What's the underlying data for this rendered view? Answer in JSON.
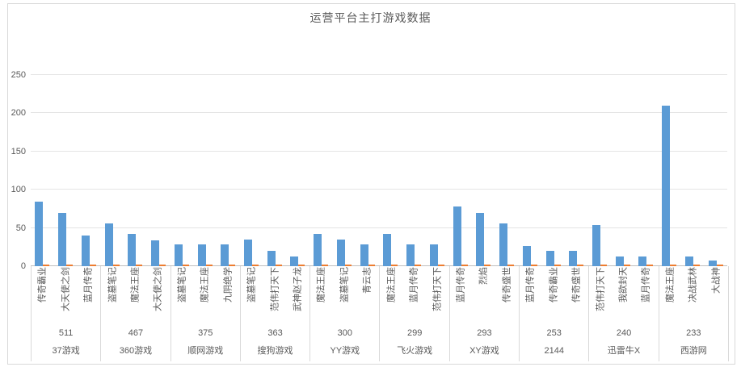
{
  "title": "运营平台主打游戏数据",
  "colors": {
    "primary_series": "#5B9BD5",
    "secondary_series": "#ED7D31",
    "gridline": "#E4E4E4",
    "axis_line": "#BFBFBF",
    "text": "#595959",
    "border": "#D9D9D9"
  },
  "chart_data": {
    "type": "bar",
    "title": "运营平台主打游戏数据",
    "xlabel": "",
    "ylabel": "",
    "ylim": [
      0,
      250
    ],
    "y_ticks": [
      0,
      50,
      100,
      150,
      200,
      250
    ],
    "y_tick_labels": [
      "0",
      "50",
      "100",
      "150",
      "200",
      "250"
    ],
    "grid": true,
    "legend": "none",
    "series_count": 2,
    "groups": [
      {
        "platform": "37游戏",
        "total": "511",
        "games": [
          "传奇霸业",
          "大天使之剑",
          "蓝月传奇"
        ],
        "primary_values": [
          84,
          70,
          40
        ],
        "secondary_values": [
          1,
          1,
          1
        ]
      },
      {
        "platform": "360游戏",
        "total": "467",
        "games": [
          "盗墓笔记",
          "魔法王座",
          "大天使之剑"
        ],
        "primary_values": [
          56,
          42,
          34
        ],
        "secondary_values": [
          1,
          1,
          1
        ]
      },
      {
        "platform": "顺网游戏",
        "total": "375",
        "games": [
          "盗墓笔记",
          "魔法王座",
          "九阴绝学"
        ],
        "primary_values": [
          28,
          28,
          28
        ],
        "secondary_values": [
          1,
          1,
          1
        ]
      },
      {
        "platform": "搜狗游戏",
        "total": "363",
        "games": [
          "盗墓笔记",
          "范伟打天下",
          "武神赵子龙"
        ],
        "primary_values": [
          35,
          20,
          13
        ],
        "secondary_values": [
          1,
          1,
          1
        ]
      },
      {
        "platform": "YY游戏",
        "total": "300",
        "games": [
          "魔法王座",
          "盗墓笔记",
          "青云志"
        ],
        "primary_values": [
          42,
          35,
          28
        ],
        "secondary_values": [
          1,
          1,
          1
        ]
      },
      {
        "platform": "飞火游戏",
        "total": "299",
        "games": [
          "魔法王座",
          "蓝月传奇",
          "范伟打天下"
        ],
        "primary_values": [
          42,
          28,
          28
        ],
        "secondary_values": [
          1,
          1,
          1
        ]
      },
      {
        "platform": "XY游戏",
        "total": "293",
        "games": [
          "蓝月传奇",
          "烈焰",
          "传奇盛世"
        ],
        "primary_values": [
          78,
          70,
          56
        ],
        "secondary_values": [
          1,
          1,
          1
        ]
      },
      {
        "platform": "2144",
        "total": "253",
        "games": [
          "蓝月传奇",
          "传奇霸业",
          "传奇盛世"
        ],
        "primary_values": [
          26,
          20,
          20
        ],
        "secondary_values": [
          1,
          1,
          1
        ]
      },
      {
        "platform": "迅雷牛X",
        "total": "240",
        "games": [
          "范伟打天下",
          "我欲封天",
          "蓝月传奇"
        ],
        "primary_values": [
          54,
          13,
          13
        ],
        "secondary_values": [
          1,
          1,
          1
        ]
      },
      {
        "platform": "西游网",
        "total": "233",
        "games": [
          "魔法王座",
          "决战武林",
          "大战神"
        ],
        "primary_values": [
          210,
          13,
          7
        ],
        "secondary_values": [
          1,
          1,
          1
        ]
      }
    ]
  }
}
